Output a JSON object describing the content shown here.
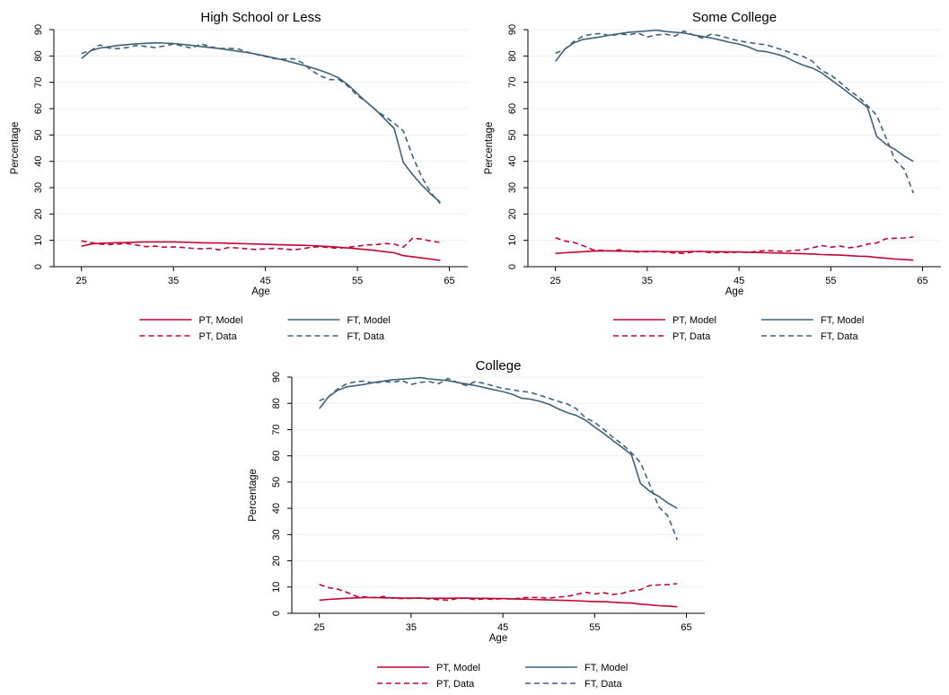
{
  "colors": {
    "pt": "#c10534",
    "ft": "#3e6379",
    "axis": "#000000",
    "grid": "#eaf2f3"
  },
  "legend_labels": {
    "pt_model": "PT, Model",
    "ft_model": "FT, Model",
    "pt_data": "PT, Data",
    "ft_data": "FT, Data"
  },
  "chart_data": [
    {
      "type": "line",
      "title": "High School or Less",
      "xlabel": "Age",
      "ylabel": "Percentage",
      "xlim": [
        22,
        67
      ],
      "ylim": [
        0,
        90
      ],
      "xticks": [
        25,
        35,
        45,
        55,
        65
      ],
      "yticks": [
        0,
        10,
        20,
        30,
        40,
        50,
        60,
        70,
        80,
        90
      ],
      "grid": true,
      "legend_position": "bottom",
      "x": [
        25,
        26,
        27,
        28,
        29,
        30,
        31,
        32,
        33,
        34,
        35,
        36,
        37,
        38,
        39,
        40,
        41,
        42,
        43,
        44,
        45,
        46,
        47,
        48,
        49,
        50,
        51,
        52,
        53,
        54,
        55,
        56,
        57,
        58,
        59,
        60,
        61,
        62,
        63,
        64
      ],
      "series": [
        {
          "name": "PT, Model",
          "key": "pt_model",
          "color_key": "pt",
          "dash": false,
          "values": [
            7.8,
            8.6,
            8.9,
            9.0,
            9.1,
            9.2,
            9.3,
            9.4,
            9.4,
            9.4,
            9.4,
            9.3,
            9.2,
            9.1,
            9.0,
            9.0,
            8.9,
            8.8,
            8.7,
            8.6,
            8.5,
            8.4,
            8.3,
            8.2,
            8.1,
            8.0,
            7.8,
            7.6,
            7.4,
            7.1,
            6.8,
            6.5,
            6.1,
            5.7,
            5.3,
            4.2,
            3.8,
            3.3,
            2.9,
            2.4
          ]
        },
        {
          "name": "FT, Model",
          "key": "ft_model",
          "color_key": "ft",
          "dash": false,
          "values": [
            79.0,
            82.0,
            83.0,
            83.5,
            84.0,
            84.3,
            84.6,
            84.8,
            85.0,
            84.9,
            84.7,
            84.4,
            84.0,
            83.6,
            83.2,
            82.8,
            82.3,
            81.8,
            81.3,
            80.7,
            80.0,
            79.2,
            78.4,
            77.5,
            76.6,
            75.6,
            74.5,
            73.2,
            71.6,
            69.0,
            65.7,
            62.5,
            59.5,
            56.0,
            52.5,
            39.5,
            35.0,
            31.0,
            27.5,
            24.5
          ]
        },
        {
          "name": "PT, Data",
          "key": "pt_data",
          "color_key": "pt",
          "dash": true,
          "values": [
            9.8,
            9.2,
            8.6,
            8.4,
            8.6,
            8.8,
            8.2,
            7.6,
            7.8,
            7.4,
            7.5,
            7.3,
            7.0,
            6.8,
            7.0,
            6.4,
            7.3,
            7.1,
            6.8,
            6.5,
            6.8,
            7.0,
            6.7,
            6.4,
            6.8,
            7.4,
            7.6,
            7.2,
            7.0,
            7.4,
            7.8,
            8.2,
            8.4,
            8.8,
            8.6,
            7.4,
            10.8,
            10.5,
            9.7,
            9.2
          ]
        },
        {
          "name": "FT, Data",
          "key": "ft_data",
          "color_key": "ft",
          "dash": true,
          "values": [
            81.0,
            82.0,
            84.2,
            83.0,
            82.8,
            83.2,
            84.0,
            83.6,
            83.2,
            83.8,
            84.5,
            83.8,
            82.9,
            84.6,
            83.5,
            82.8,
            82.9,
            82.7,
            81.5,
            80.6,
            79.8,
            79.0,
            78.8,
            79.0,
            77.5,
            74.5,
            72.4,
            71.0,
            71.0,
            68.5,
            65.0,
            62.5,
            59.5,
            57.0,
            54.5,
            51.5,
            42.0,
            34.0,
            28.0,
            24.0
          ]
        }
      ]
    },
    {
      "type": "line",
      "title": "Some College",
      "xlabel": "Age",
      "ylabel": "Percentage",
      "xlim": [
        22,
        67
      ],
      "ylim": [
        0,
        90
      ],
      "xticks": [
        25,
        35,
        45,
        55,
        65
      ],
      "yticks": [
        0,
        10,
        20,
        30,
        40,
        50,
        60,
        70,
        80,
        90
      ],
      "grid": true,
      "legend_position": "bottom",
      "x": [
        25,
        26,
        27,
        28,
        29,
        30,
        31,
        32,
        33,
        34,
        35,
        36,
        37,
        38,
        39,
        40,
        41,
        42,
        43,
        44,
        45,
        46,
        47,
        48,
        49,
        50,
        51,
        52,
        53,
        54,
        55,
        56,
        57,
        58,
        59,
        60,
        61,
        62,
        63,
        64
      ],
      "series": [
        {
          "name": "PT, Model",
          "key": "pt_model",
          "color_key": "pt",
          "dash": false,
          "values": [
            5.0,
            5.3,
            5.5,
            5.7,
            5.9,
            6.0,
            6.0,
            5.9,
            5.9,
            5.8,
            5.8,
            5.8,
            5.7,
            5.7,
            5.7,
            5.8,
            5.8,
            5.7,
            5.7,
            5.6,
            5.6,
            5.5,
            5.4,
            5.3,
            5.2,
            5.1,
            5.0,
            4.9,
            4.8,
            4.6,
            4.5,
            4.4,
            4.2,
            4.0,
            3.9,
            3.5,
            3.2,
            2.9,
            2.7,
            2.5
          ]
        },
        {
          "name": "FT, Model",
          "key": "ft_model",
          "color_key": "ft",
          "dash": false,
          "values": [
            78.0,
            82.5,
            85.0,
            86.3,
            86.8,
            87.3,
            88.0,
            88.5,
            89.0,
            89.2,
            89.5,
            89.8,
            89.3,
            89.0,
            88.7,
            88.0,
            87.4,
            86.8,
            86.0,
            85.2,
            84.5,
            83.5,
            82.0,
            81.6,
            80.8,
            79.7,
            78.0,
            76.5,
            75.4,
            73.6,
            71.0,
            68.5,
            65.8,
            63.2,
            60.5,
            49.5,
            46.5,
            44.5,
            42.0,
            40.0
          ]
        },
        {
          "name": "PT, Data",
          "key": "pt_data",
          "color_key": "pt",
          "dash": true,
          "values": [
            11.0,
            9.8,
            9.2,
            8.0,
            6.5,
            6.2,
            6.0,
            6.4,
            5.8,
            5.6,
            5.7,
            5.8,
            5.5,
            5.2,
            5.0,
            5.6,
            5.8,
            5.2,
            5.5,
            5.3,
            5.6,
            5.4,
            5.9,
            6.1,
            6.0,
            5.8,
            6.2,
            6.4,
            7.2,
            8.0,
            7.4,
            7.8,
            7.2,
            7.6,
            8.6,
            9.0,
            10.6,
            10.8,
            10.9,
            11.3
          ]
        },
        {
          "name": "FT, Data",
          "key": "ft_data",
          "color_key": "ft",
          "dash": true,
          "values": [
            81.0,
            82.5,
            85.5,
            87.5,
            88.3,
            88.5,
            87.6,
            88.4,
            88.0,
            88.7,
            87.2,
            88.0,
            88.3,
            87.5,
            89.5,
            88.0,
            86.8,
            88.3,
            87.6,
            86.6,
            85.7,
            85.2,
            84.6,
            84.2,
            83.1,
            82.0,
            80.8,
            79.8,
            78.0,
            74.5,
            72.8,
            70.0,
            67.0,
            64.5,
            61.2,
            57.5,
            49.0,
            40.5,
            37.0,
            28.0
          ]
        }
      ]
    },
    {
      "type": "line",
      "title": "College",
      "xlabel": "Age",
      "ylabel": "Percentage",
      "xlim": [
        22,
        67
      ],
      "ylim": [
        0,
        90
      ],
      "xticks": [
        25,
        35,
        45,
        55,
        65
      ],
      "yticks": [
        0,
        10,
        20,
        30,
        40,
        50,
        60,
        70,
        80,
        90
      ],
      "grid": true,
      "legend_position": "bottom",
      "x": [
        25,
        26,
        27,
        28,
        29,
        30,
        31,
        32,
        33,
        34,
        35,
        36,
        37,
        38,
        39,
        40,
        41,
        42,
        43,
        44,
        45,
        46,
        47,
        48,
        49,
        50,
        51,
        52,
        53,
        54,
        55,
        56,
        57,
        58,
        59,
        60,
        61,
        62,
        63,
        64
      ],
      "series": [
        {
          "name": "PT, Model",
          "key": "pt_model",
          "color_key": "pt",
          "dash": false,
          "values": [
            5.0,
            5.3,
            5.5,
            5.7,
            5.9,
            6.0,
            6.0,
            5.9,
            5.9,
            5.8,
            5.8,
            5.8,
            5.7,
            5.7,
            5.7,
            5.8,
            5.8,
            5.7,
            5.7,
            5.6,
            5.6,
            5.5,
            5.4,
            5.3,
            5.2,
            5.1,
            5.0,
            4.9,
            4.8,
            4.6,
            4.5,
            4.4,
            4.2,
            4.0,
            3.9,
            3.5,
            3.2,
            2.9,
            2.7,
            2.5
          ]
        },
        {
          "name": "FT, Model",
          "key": "ft_model",
          "color_key": "ft",
          "dash": false,
          "values": [
            78.0,
            82.5,
            85.0,
            86.3,
            86.8,
            87.3,
            88.0,
            88.5,
            89.0,
            89.2,
            89.5,
            89.8,
            89.3,
            89.0,
            88.7,
            88.0,
            87.4,
            86.8,
            86.0,
            85.2,
            84.5,
            83.5,
            82.0,
            81.6,
            80.8,
            79.7,
            78.0,
            76.5,
            75.4,
            73.6,
            71.0,
            68.5,
            65.8,
            63.2,
            60.5,
            49.5,
            46.5,
            44.5,
            42.0,
            40.0
          ]
        },
        {
          "name": "PT, Data",
          "key": "pt_data",
          "color_key": "pt",
          "dash": true,
          "values": [
            11.0,
            9.8,
            9.2,
            8.0,
            6.5,
            6.2,
            6.0,
            6.4,
            5.8,
            5.6,
            5.7,
            5.8,
            5.5,
            5.2,
            5.0,
            5.6,
            5.8,
            5.2,
            5.5,
            5.3,
            5.6,
            5.4,
            5.9,
            6.1,
            6.0,
            5.8,
            6.2,
            6.4,
            7.2,
            8.0,
            7.4,
            7.8,
            7.2,
            7.6,
            8.6,
            9.0,
            10.6,
            10.8,
            10.9,
            11.3
          ]
        },
        {
          "name": "FT, Data",
          "key": "ft_data",
          "color_key": "ft",
          "dash": true,
          "values": [
            81.0,
            82.5,
            85.5,
            87.5,
            88.3,
            88.5,
            87.6,
            88.4,
            88.0,
            88.7,
            87.2,
            88.0,
            88.3,
            87.5,
            89.5,
            88.0,
            86.8,
            88.3,
            87.6,
            86.6,
            85.7,
            85.2,
            84.6,
            84.2,
            83.1,
            82.0,
            80.8,
            79.8,
            78.0,
            74.5,
            72.8,
            70.0,
            67.0,
            64.5,
            61.2,
            57.5,
            49.0,
            40.5,
            37.0,
            28.0
          ]
        }
      ]
    }
  ]
}
